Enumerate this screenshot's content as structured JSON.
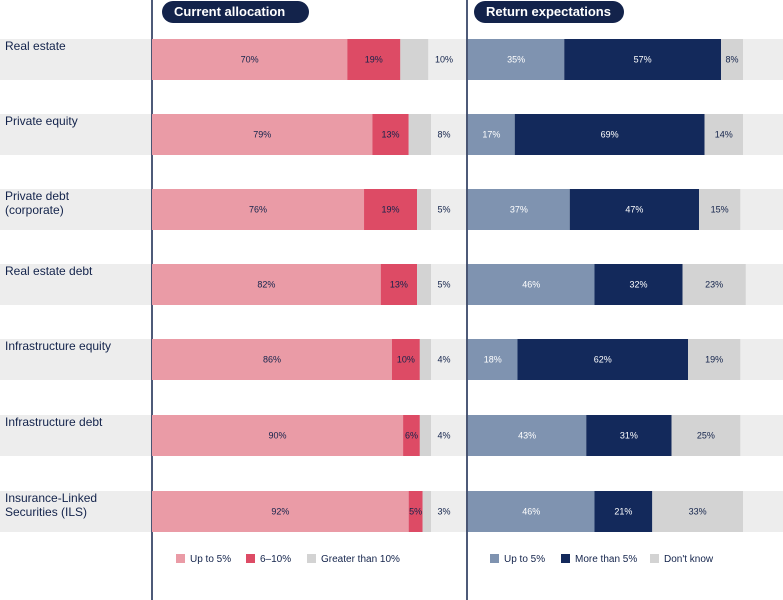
{
  "chart_data": {
    "type": "bar",
    "stacked": true,
    "orientation": "horizontal",
    "categories": [
      [
        "Real estate"
      ],
      [
        "Private equity"
      ],
      [
        "Private debt",
        "(corporate)"
      ],
      [
        "Real estate debt"
      ],
      [
        "Infrastructure equity"
      ],
      [
        "Infrastructure debt"
      ],
      [
        "Insurance-Linked",
        "Securities (ILS)"
      ]
    ],
    "panels": [
      {
        "title": "Current allocation",
        "legend_position": "bottom",
        "series": [
          {
            "name": "Up to 5%",
            "color": "#ea9ba6",
            "text_color": "#13234b",
            "values": [
              70,
              79,
              76,
              82,
              86,
              90,
              92
            ],
            "labels": [
              "70%",
              "79%",
              "76%",
              "82%",
              "86%",
              "90%",
              "92%"
            ]
          },
          {
            "name": "6–10%",
            "color": "#dd4b65",
            "text_color": "#13234b",
            "values": [
              19,
              13,
              19,
              13,
              10,
              6,
              5
            ],
            "labels": [
              "19%",
              "13%",
              "19%",
              "13%",
              "10%",
              "6%",
              "5%"
            ]
          },
          {
            "name": "Greater than 10%",
            "color": "#d3d3d3",
            "text_color": "#13234b",
            "label_outside": true,
            "values": [
              10,
              8,
              5,
              5,
              4,
              4,
              3
            ],
            "labels": [
              "10%",
              "8%",
              "5%",
              "5%",
              "4%",
              "4%",
              "3%"
            ]
          }
        ]
      },
      {
        "title": "Return expectations",
        "legend_position": "bottom",
        "series": [
          {
            "name": "Up to 5%",
            "color": "#7f93b0",
            "text_color": "#ffffff",
            "values": [
              35,
              17,
              37,
              46,
              18,
              43,
              46
            ],
            "labels": [
              "35%",
              "17%",
              "37%",
              "46%",
              "18%",
              "43%",
              "46%"
            ]
          },
          {
            "name": "More than 5%",
            "color": "#13295b",
            "text_color": "#ffffff",
            "values": [
              57,
              69,
              47,
              32,
              62,
              31,
              21
            ],
            "labels": [
              "57%",
              "69%",
              "47%",
              "32%",
              "62%",
              "31%",
              "21%"
            ]
          },
          {
            "name": "Don't know",
            "color": "#d3d3d3",
            "text_color": "#13234b",
            "values": [
              8,
              14,
              15,
              23,
              19,
              25,
              33
            ],
            "labels": [
              "8%",
              "14%",
              "15%",
              "23%",
              "19%",
              "25%",
              "33%"
            ]
          }
        ]
      }
    ],
    "xlim": [
      0,
      100
    ]
  },
  "colors": {
    "navy": "#13234b",
    "row_band": "#ededed"
  }
}
